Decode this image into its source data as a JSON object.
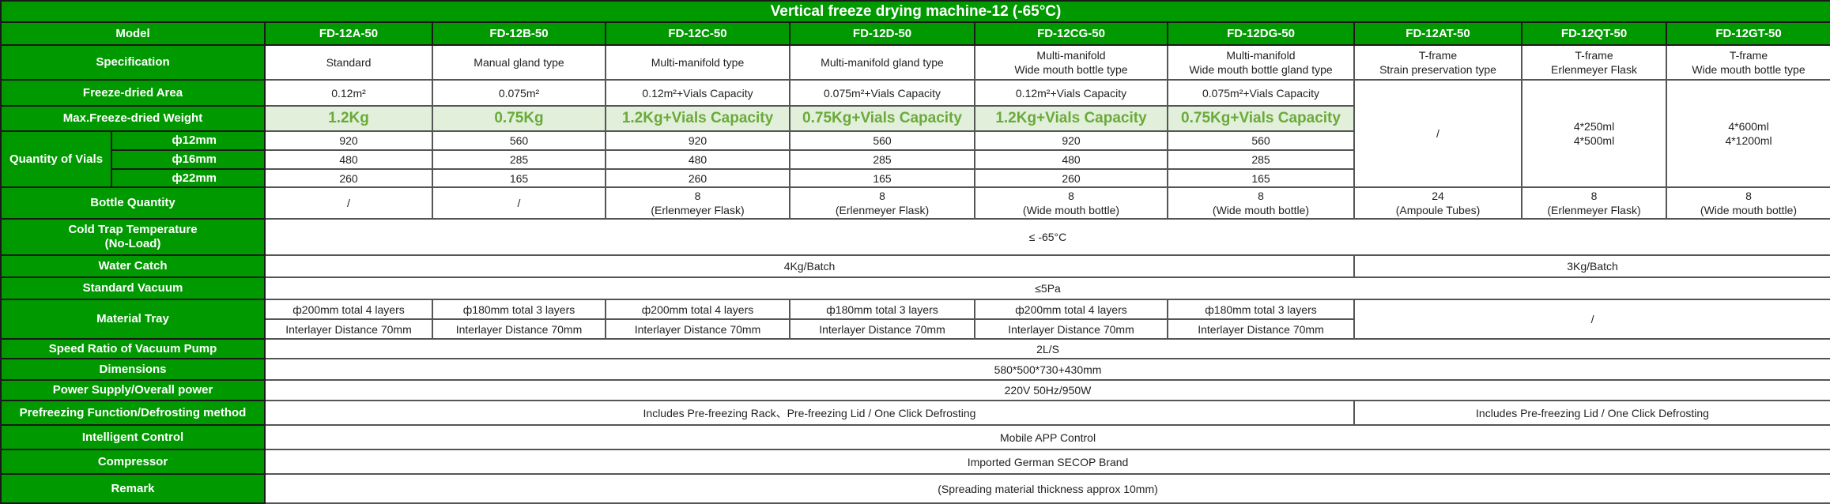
{
  "title": "Vertical freeze drying machine-12 (-65°C)",
  "colors": {
    "header_green": "#009900",
    "highlight_bg": "#e2efda",
    "highlight_text": "#6aaa3a"
  },
  "labels": {
    "model": "Model",
    "specification": "Specification",
    "area": "Freeze-dried Area",
    "max_weight": "Max.Freeze-dried Weight",
    "vials": "Quantity of Vials",
    "vial_sizes": [
      "ф12mm",
      "ф16mm",
      "ф22mm"
    ],
    "bottle_quantity": "Bottle Quantity",
    "cold_trap": "Cold Trap Temperature\n(No-Load)",
    "water_catch": "Water Catch",
    "vacuum": "Standard Vacuum",
    "tray": "Material Tray",
    "pump": "Speed Ratio of Vacuum Pump",
    "dimensions": "Dimensions",
    "power": "Power Supply/Overall power",
    "prefreezing": "Prefreezing Function/Defrosting method",
    "control": "Intelligent Control",
    "compressor": "Compressor",
    "remark": "Remark"
  },
  "models": [
    "FD-12A-50",
    "FD-12B-50",
    "FD-12C-50",
    "FD-12D-50",
    "FD-12CG-50",
    "FD-12DG-50",
    "FD-12AT-50",
    "FD-12QT-50",
    "FD-12GT-50"
  ],
  "specification": [
    "Standard",
    "Manual gland type",
    "Multi-manifold type",
    "Multi-manifold gland type",
    "Multi-manifold\nWide mouth bottle type",
    "Multi-manifold\nWide mouth bottle gland type",
    "T-frame\nStrain preservation type",
    "T-frame\nErlenmeyer Flask",
    "T-frame\nWide mouth bottle type"
  ],
  "area": [
    "0.12m²",
    "0.075m²",
    "0.12m²+Vials Capacity",
    "0.075m²+Vials Capacity",
    "0.12m²+Vials Capacity",
    "0.075m²+Vials Capacity"
  ],
  "max_weight": [
    "1.2Kg",
    "0.75Kg",
    "1.2Kg+Vials Capacity",
    "0.75Kg+Vials Capacity",
    "1.2Kg+Vials Capacity",
    "0.75Kg+Vials Capacity"
  ],
  "vials": {
    "d12": [
      "920",
      "560",
      "920",
      "560",
      "920",
      "560"
    ],
    "d16": [
      "480",
      "285",
      "480",
      "285",
      "480",
      "285"
    ],
    "d22": [
      "260",
      "165",
      "260",
      "165",
      "260",
      "165"
    ]
  },
  "t_frame_capacity": [
    "/",
    "4*250ml\n4*500ml",
    "4*600ml\n4*1200ml"
  ],
  "bottle_quantity": [
    "/",
    "/",
    "8\n(Erlenmeyer Flask)",
    "8\n(Erlenmeyer Flask)",
    "8\n(Wide mouth bottle)",
    "8\n(Wide mouth bottle)",
    "24\n(Ampoule Tubes)",
    "8\n(Erlenmeyer Flask)",
    "8\n(Wide mouth bottle)"
  ],
  "cold_trap": "≤ -65°C",
  "water_catch": [
    "4Kg/Batch",
    "3Kg/Batch"
  ],
  "vacuum": "≤5Pa",
  "tray": {
    "layers": [
      "ф200mm total 4 layers",
      "ф180mm total 3 layers",
      "ф200mm total 4 layers",
      "ф180mm total 3 layers",
      "ф200mm total 4 layers",
      "ф180mm total 3 layers"
    ],
    "distance": [
      "Interlayer Distance 70mm",
      "Interlayer Distance 70mm",
      "Interlayer Distance 70mm",
      "Interlayer Distance 70mm",
      "Interlayer Distance 70mm",
      "Interlayer Distance 70mm"
    ],
    "t_frame": "/"
  },
  "pump": "2L/S",
  "dimensions": "580*500*730+430mm",
  "power": "220V  50Hz/950W",
  "prefreezing": [
    "Includes Pre-freezing Rack、Pre-freezing Lid / One Click Defrosting",
    "Includes Pre-freezing Lid / One Click Defrosting"
  ],
  "control": "Mobile APP Control",
  "compressor": "Imported German SECOP Brand",
  "remark": "(Spreading material thickness approx 10mm)"
}
